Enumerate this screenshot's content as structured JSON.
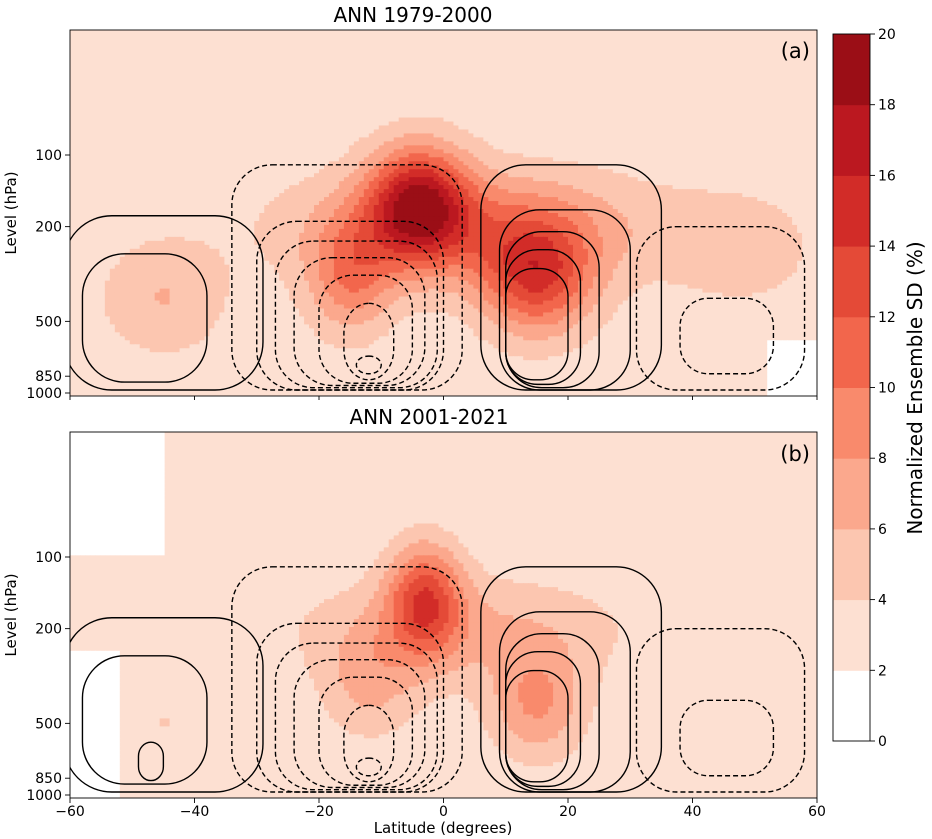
{
  "chart_data": [
    {
      "type": "heatmap",
      "panel_tag": "(a)",
      "title": "ANN 1979-2000",
      "xlabel": "",
      "ylabel": "Level (hPa)",
      "xlim": [
        -60,
        60
      ],
      "y_scale": "log-pressure",
      "y_ticks": [
        "100",
        "200",
        "500",
        "850",
        "1000"
      ],
      "overlay": "streamfunction contours (solid positive, dashed negative)",
      "blobs": [
        {
          "lat": 5,
          "p": 200,
          "level": 9,
          "spread": 28
        },
        {
          "lat": -4,
          "p": 160,
          "level": 16,
          "spread": 8
        },
        {
          "lat": 15,
          "p": 330,
          "level": 13,
          "spread": 9
        },
        {
          "lat": -15,
          "p": 330,
          "level": 9,
          "spread": 7
        },
        {
          "lat": -45,
          "p": 400,
          "level": 6,
          "spread": 10
        },
        {
          "lat": 48,
          "p": 250,
          "level": 5,
          "spread": 12
        }
      ]
    },
    {
      "type": "heatmap",
      "panel_tag": "(b)",
      "title": "ANN 2001-2021",
      "xlabel": "Latitude (degrees)",
      "ylabel": "Level (hPa)",
      "xlim": [
        -60,
        60
      ],
      "x_ticks": [
        "−60",
        "−40",
        "−20",
        "0",
        "20",
        "40",
        "60"
      ],
      "y_scale": "log-pressure",
      "y_ticks": [
        "100",
        "200",
        "500",
        "850",
        "1000"
      ],
      "overlay": "streamfunction contours (solid positive, dashed negative)",
      "blobs": [
        {
          "lat": 3,
          "p": 200,
          "level": 6,
          "spread": 28
        },
        {
          "lat": -3,
          "p": 150,
          "level": 12,
          "spread": 6
        },
        {
          "lat": 15,
          "p": 420,
          "level": 8,
          "spread": 8
        },
        {
          "lat": -12,
          "p": 350,
          "level": 6,
          "spread": 8
        },
        {
          "lat": -45,
          "p": 500,
          "level": 4,
          "spread": 10
        }
      ]
    }
  ],
  "colorbar": {
    "label": "Normalized Ensemble SD (%)",
    "ticks": [
      "0",
      "2",
      "4",
      "6",
      "8",
      "10",
      "12",
      "14",
      "16",
      "18",
      "20"
    ],
    "colors": [
      "#ffffff",
      "#fde0d2",
      "#fcc6b0",
      "#fba88d",
      "#f98a6c",
      "#f2664c",
      "#e44a37",
      "#d22c28",
      "#bb1820",
      "#9b0e16",
      "#6d0710"
    ]
  }
}
